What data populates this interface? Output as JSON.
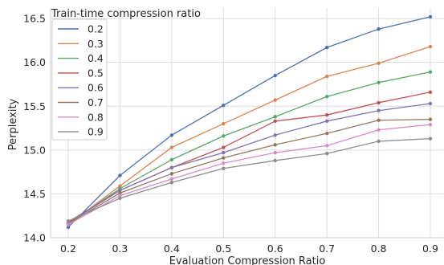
{
  "chart_data": {
    "type": "line",
    "xlabel": "Evaluation Compression Ratio",
    "ylabel": "Perplexity",
    "x": [
      0.2,
      0.3,
      0.4,
      0.5,
      0.6,
      0.7,
      0.8,
      0.9
    ],
    "xticks": [
      "0.2",
      "0.3",
      "0.4",
      "0.5",
      "0.6",
      "0.7",
      "0.8",
      "0.9"
    ],
    "ylim": [
      14.0,
      16.62
    ],
    "yticks": [
      "14.0",
      "14.5",
      "15.0",
      "15.5",
      "16.0",
      "16.5"
    ],
    "grid": true,
    "legend": {
      "title": "Train-time compression ratio",
      "placement": "top-left"
    },
    "series": [
      {
        "name": "0.2",
        "color": "#4c72b0",
        "values": [
          14.12,
          14.71,
          15.17,
          15.51,
          15.85,
          16.17,
          16.38,
          16.52
        ]
      },
      {
        "name": "0.3",
        "color": "#dd8452",
        "values": [
          14.15,
          14.59,
          15.03,
          15.3,
          15.57,
          15.84,
          15.99,
          16.18
        ]
      },
      {
        "name": "0.4",
        "color": "#55a868",
        "values": [
          14.16,
          14.56,
          14.89,
          15.16,
          15.38,
          15.61,
          15.77,
          15.89
        ]
      },
      {
        "name": "0.5",
        "color": "#c44e52",
        "values": [
          14.17,
          14.54,
          14.8,
          15.03,
          15.33,
          15.4,
          15.54,
          15.66
        ]
      },
      {
        "name": "0.6",
        "color": "#8172b3",
        "values": [
          14.18,
          14.54,
          14.8,
          14.97,
          15.17,
          15.33,
          15.45,
          15.53
        ]
      },
      {
        "name": "0.7",
        "color": "#937860",
        "values": [
          14.16,
          14.51,
          14.73,
          14.91,
          15.06,
          15.19,
          15.34,
          15.35
        ]
      },
      {
        "name": "0.8",
        "color": "#da8bc3",
        "values": [
          14.15,
          14.48,
          14.67,
          14.85,
          14.97,
          15.05,
          15.23,
          15.29
        ]
      },
      {
        "name": "0.9",
        "color": "#8c8c8c",
        "values": [
          14.19,
          14.45,
          14.63,
          14.79,
          14.88,
          14.96,
          15.1,
          15.13
        ]
      }
    ]
  }
}
